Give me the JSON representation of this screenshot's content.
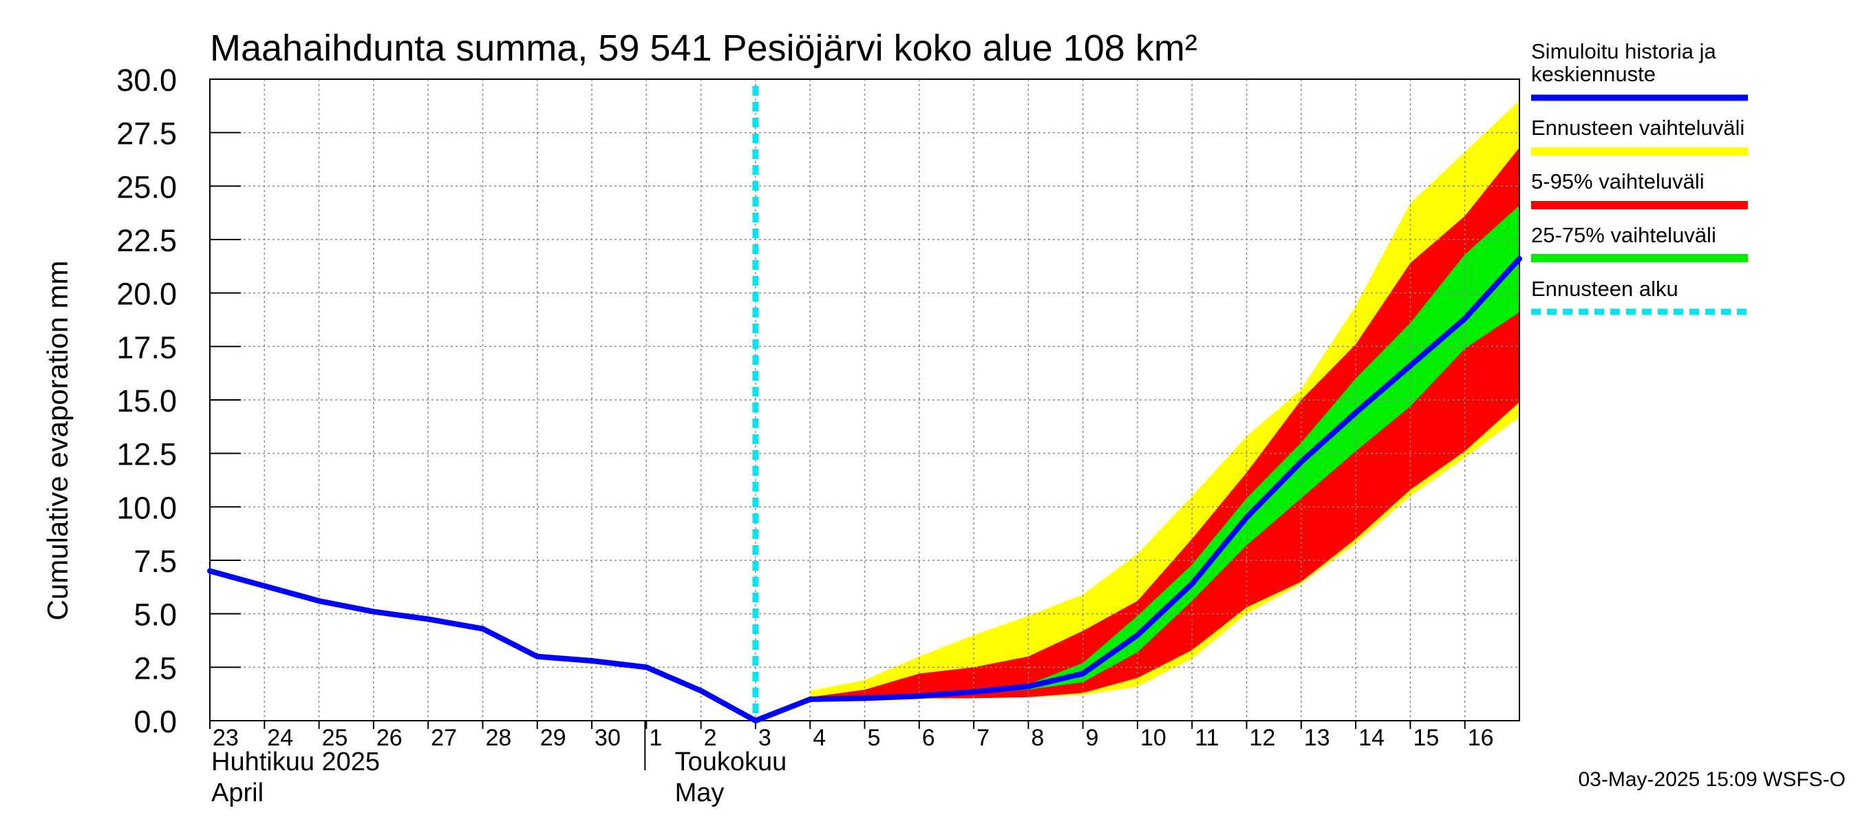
{
  "chart_data": {
    "type": "area",
    "title": "Maahaihdunta summa, 59 541 Pesiöjärvi koko alue 108 km²",
    "ylabel": "Cumulative evaporation   mm",
    "xlabel": "",
    "ylim": [
      0,
      30
    ],
    "yticks": [
      "0.0",
      "2.5",
      "5.0",
      "7.5",
      "10.0",
      "12.5",
      "15.0",
      "17.5",
      "20.0",
      "22.5",
      "25.0",
      "27.5",
      "30.0"
    ],
    "x_day_index_range": [
      0,
      24
    ],
    "day_labels": [
      "23",
      "24",
      "25",
      "26",
      "27",
      "28",
      "29",
      "30",
      "1",
      "2",
      "3",
      "4",
      "5",
      "6",
      "7",
      "8",
      "9",
      "10",
      "11",
      "12",
      "13",
      "14",
      "15",
      "16"
    ],
    "month_labels": {
      "april_fi": "Huhtikuu  2025",
      "april_en": "April",
      "may_fi": "Toukokuu",
      "may_en": "May"
    },
    "forecast_start_index": 10,
    "series": [
      {
        "name": "Simuloitu historia ja keskiennuste",
        "x": [
          0,
          1,
          2,
          3,
          4,
          5,
          6,
          7,
          8,
          9,
          10,
          11,
          12,
          13,
          14,
          15,
          16,
          17,
          18,
          19,
          20,
          21,
          22,
          23,
          24
        ],
        "values": [
          7.0,
          6.3,
          5.6,
          5.1,
          4.75,
          4.3,
          3.0,
          2.8,
          2.5,
          1.4,
          0.0,
          1.0,
          1.05,
          1.15,
          1.35,
          1.6,
          2.2,
          4.0,
          6.4,
          9.5,
          12.1,
          14.4,
          16.6,
          18.8,
          21.6
        ]
      }
    ],
    "bands": [
      {
        "name": "Ennusteen vaihteluväli",
        "x": [
          11,
          12,
          13,
          14,
          15,
          16,
          17,
          18,
          19,
          20,
          21,
          22,
          23,
          24
        ],
        "low": [
          1.0,
          1.0,
          1.0,
          1.05,
          1.1,
          1.2,
          1.6,
          2.9,
          5.0,
          6.4,
          8.3,
          10.5,
          12.3,
          14.2
        ],
        "high": [
          1.4,
          1.9,
          3.0,
          4.0,
          4.9,
          5.9,
          7.8,
          10.5,
          13.3,
          15.5,
          19.4,
          24.2,
          26.6,
          29.0
        ]
      },
      {
        "name": "5-95% vaihteluväli",
        "x": [
          11,
          12,
          13,
          14,
          15,
          16,
          17,
          18,
          19,
          20,
          21,
          22,
          23,
          24
        ],
        "low": [
          1.0,
          1.0,
          1.05,
          1.05,
          1.1,
          1.3,
          2.0,
          3.3,
          5.3,
          6.5,
          8.5,
          10.8,
          12.6,
          14.9
        ],
        "high": [
          1.1,
          1.45,
          2.2,
          2.5,
          3.0,
          4.2,
          5.6,
          8.5,
          11.6,
          15.0,
          17.6,
          21.4,
          23.6,
          26.8
        ]
      },
      {
        "name": "25-75% vaihteluväli",
        "x": [
          11,
          12,
          13,
          14,
          15,
          16,
          17,
          18,
          19,
          20,
          21,
          22,
          23,
          24
        ],
        "low": [
          1.0,
          1.0,
          1.1,
          1.25,
          1.45,
          1.8,
          3.2,
          5.6,
          8.2,
          10.4,
          12.6,
          14.7,
          17.4,
          19.1
        ],
        "high": [
          1.0,
          1.1,
          1.2,
          1.4,
          1.7,
          2.7,
          4.9,
          7.3,
          10.4,
          13.0,
          16.0,
          18.6,
          21.8,
          24.1
        ]
      }
    ],
    "legend": [
      {
        "label": "Simuloitu historia ja",
        "label2": "keskiennuste",
        "color": "#0000ff"
      },
      {
        "label": "Ennusteen vaihteluväli",
        "color": "#ffff00"
      },
      {
        "label": "5-95% vaihteluväli",
        "color": "#ff0000"
      },
      {
        "label": "25-75% vaihteluväli",
        "color": "#00ee00"
      },
      {
        "label": "Ennusteen alku",
        "color": "#00e5ee"
      }
    ],
    "colors": {
      "median": "#0000ff",
      "full_range": "#ffff00",
      "p5_95": "#ff0000",
      "p25_75": "#00ee00",
      "forecast_start": "#00e5ee",
      "grid": "#888888"
    },
    "footer": "03-May-2025 15:09 WSFS-O"
  }
}
